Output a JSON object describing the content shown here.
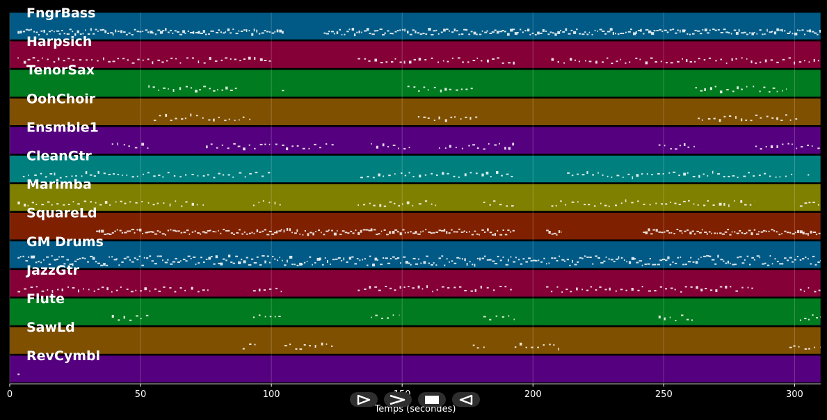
{
  "chart_data": {
    "type": "piano-roll",
    "xlabel": "Temps (secondes)",
    "xlim": [
      0,
      310
    ],
    "xticks": [
      0,
      50,
      100,
      150,
      200,
      250,
      300
    ],
    "grid": true,
    "tracks": [
      {
        "name": "FngrBass",
        "color": "#005a85",
        "segments": [
          [
            3,
            105
          ],
          [
            120,
            310
          ]
        ]
      },
      {
        "name": "Harpsich",
        "color": "#840037",
        "segments": [
          [
            3,
            100
          ],
          [
            133,
            193
          ],
          [
            207,
            310
          ]
        ]
      },
      {
        "name": "TenorSax",
        "color": "#007b1f",
        "segments": [
          [
            53,
            88
          ],
          [
            104,
            105
          ],
          [
            152,
            177
          ],
          [
            262,
            297
          ]
        ]
      },
      {
        "name": "OohChoir",
        "color": "#7f5000",
        "segments": [
          [
            55,
            92
          ],
          [
            156,
            180
          ],
          [
            263,
            301
          ]
        ]
      },
      {
        "name": "Ensmble1",
        "color": "#55007f",
        "segments": [
          [
            39,
            53
          ],
          [
            75,
            124
          ],
          [
            138,
            153
          ],
          [
            164,
            193
          ],
          [
            248,
            262
          ],
          [
            285,
            310
          ]
        ]
      },
      {
        "name": "CleanGtr",
        "color": "#007f7f",
        "segments": [
          [
            5,
            100
          ],
          [
            134,
            193
          ],
          [
            213,
            300
          ],
          [
            305,
            306
          ]
        ]
      },
      {
        "name": "Marimba",
        "color": "#7f7f00",
        "segments": [
          [
            3,
            75
          ],
          [
            93,
            104
          ],
          [
            133,
            163
          ],
          [
            181,
            193
          ],
          [
            207,
            285
          ],
          [
            302,
            310
          ]
        ]
      },
      {
        "name": "SquareLd",
        "color": "#7f2100",
        "segments": [
          [
            33,
            193
          ],
          [
            205,
            211
          ],
          [
            242,
            310
          ]
        ]
      },
      {
        "name": "GM Drums",
        "color": "#005a85",
        "segments": [
          [
            3,
            310
          ]
        ]
      },
      {
        "name": "JazzGtr",
        "color": "#840037",
        "segments": [
          [
            3,
            76
          ],
          [
            93,
            105
          ],
          [
            133,
            193
          ],
          [
            205,
            285
          ],
          [
            302,
            310
          ]
        ]
      },
      {
        "name": "Flute",
        "color": "#007b1f",
        "segments": [
          [
            39,
            53
          ],
          [
            93,
            104
          ],
          [
            138,
            149
          ],
          [
            181,
            193
          ],
          [
            248,
            262
          ],
          [
            302,
            310
          ]
        ]
      },
      {
        "name": "SawLd",
        "color": "#7f5000",
        "segments": [
          [
            89,
            94
          ],
          [
            105,
            124
          ],
          [
            177,
            182
          ],
          [
            193,
            210
          ],
          [
            298,
            310
          ]
        ]
      },
      {
        "name": "RevCymbl",
        "color": "#55007f",
        "segments": [
          [
            3,
            4
          ]
        ]
      }
    ]
  },
  "controls": {
    "play_icon": "play-icon",
    "forward_icon": "fast-forward-icon",
    "stop_icon": "stop-icon",
    "back_icon": "rewind-icon"
  }
}
